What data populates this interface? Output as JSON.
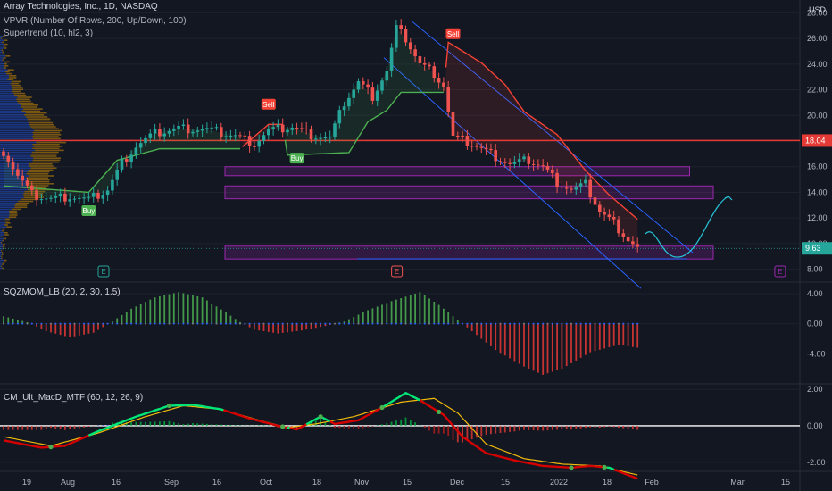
{
  "header": {
    "symbol_line": "Array Technologies, Inc., 1D, NASDAQ",
    "vpvr_line": "VPVR (Number Of Rows, 200, Up/Down, 100)",
    "supertrend_line": "Supertrend (10, hl2, 3)",
    "currency": "USD"
  },
  "colors": {
    "background": "#131722",
    "up": "#26a69a",
    "down": "#ef5350",
    "supertrend_up": "#4caf50",
    "supertrend_down": "#f44336",
    "hline": "#e53935",
    "box": "#9c27b0",
    "channel": "#2962ff",
    "projection": "#26c6da",
    "sqz_green": "#4caf50",
    "sqz_red": "#e53935",
    "macd_green": "#00e676",
    "macd_red": "#d50000",
    "signal": "#f0b90b"
  },
  "chart_data": [
    {
      "type": "candlestick",
      "title": "Array Technologies, Inc., 1D, NASDAQ",
      "ylabel": "USD",
      "ylim": [
        7.0,
        29.0
      ],
      "yticks": [
        8.0,
        10.0,
        12.0,
        14.0,
        16.0,
        18.0,
        20.0,
        22.0,
        24.0,
        26.0,
        28.0
      ],
      "ytick_labels": [
        "8.00",
        "10.00",
        "12.00",
        "14.00",
        "16.00",
        "18.00",
        "20.00",
        "22.00",
        "24.00",
        "26.00",
        "28.00"
      ],
      "xtick_labels": [
        "19",
        "Aug",
        "16",
        "Sep",
        "16",
        "Oct",
        "18",
        "Nov",
        "15",
        "Dec",
        "15",
        "2022",
        "18",
        "Feb",
        "Mar",
        "15"
      ],
      "horizontal_line": {
        "value": 18.04,
        "label": "18.04"
      },
      "last_price": {
        "value": 9.63,
        "label": "9.63"
      },
      "close_path": [
        {
          "t": 0,
          "c": 17.2
        },
        {
          "t": 3,
          "c": 15.3
        },
        {
          "t": 6,
          "c": 13.8
        },
        {
          "t": 10,
          "c": 13.5
        },
        {
          "t": 14,
          "c": 13.7
        },
        {
          "t": 18,
          "c": 13.4
        },
        {
          "t": 22,
          "c": 14.2
        },
        {
          "t": 25,
          "c": 16.3
        },
        {
          "t": 28,
          "c": 17.6
        },
        {
          "t": 32,
          "c": 18.6
        },
        {
          "t": 37,
          "c": 19.0
        },
        {
          "t": 43,
          "c": 18.9
        },
        {
          "t": 49,
          "c": 18.4
        },
        {
          "t": 53,
          "c": 17.8
        },
        {
          "t": 56,
          "c": 18.8
        },
        {
          "t": 61,
          "c": 19.1
        },
        {
          "t": 65,
          "c": 18.5
        },
        {
          "t": 69,
          "c": 18.2
        },
        {
          "t": 72,
          "c": 21.0
        },
        {
          "t": 75,
          "c": 22.6
        },
        {
          "t": 78,
          "c": 21.5
        },
        {
          "t": 81,
          "c": 23.5
        },
        {
          "t": 83,
          "c": 26.8
        },
        {
          "t": 85,
          "c": 26.0
        },
        {
          "t": 88,
          "c": 24.0
        },
        {
          "t": 91,
          "c": 23.3
        },
        {
          "t": 93,
          "c": 22.3
        },
        {
          "t": 95,
          "c": 18.3
        },
        {
          "t": 99,
          "c": 17.8
        },
        {
          "t": 103,
          "c": 17.0
        },
        {
          "t": 107,
          "c": 16.2
        },
        {
          "t": 111,
          "c": 16.5
        },
        {
          "t": 114,
          "c": 16.0
        },
        {
          "t": 117,
          "c": 14.8
        },
        {
          "t": 120,
          "c": 14.2
        },
        {
          "t": 123,
          "c": 14.6
        },
        {
          "t": 126,
          "c": 12.5
        },
        {
          "t": 129,
          "c": 11.6
        },
        {
          "t": 132,
          "c": 10.3
        },
        {
          "t": 134,
          "c": 9.63
        }
      ],
      "supertrend": [
        {
          "t": 0,
          "v": 14.5,
          "dir": "up"
        },
        {
          "t": 18,
          "v": 14.0,
          "dir": "up"
        },
        {
          "t": 24,
          "v": 16.5,
          "dir": "up"
        },
        {
          "t": 33,
          "v": 17.4,
          "dir": "up"
        },
        {
          "t": 50,
          "v": 17.4,
          "dir": "up"
        },
        {
          "t": 56,
          "v": 19.3,
          "dir": "down"
        },
        {
          "t": 59,
          "v": 19.3,
          "dir": "down"
        },
        {
          "t": 60,
          "v": 16.9,
          "dir": "up"
        },
        {
          "t": 73,
          "v": 17.1,
          "dir": "up"
        },
        {
          "t": 77,
          "v": 19.5,
          "dir": "up"
        },
        {
          "t": 81,
          "v": 20.4,
          "dir": "up"
        },
        {
          "t": 84,
          "v": 21.8,
          "dir": "up"
        },
        {
          "t": 93,
          "v": 21.8,
          "dir": "up"
        },
        {
          "t": 94,
          "v": 25.7,
          "dir": "down"
        },
        {
          "t": 101,
          "v": 24.1,
          "dir": "down"
        },
        {
          "t": 106,
          "v": 22.4,
          "dir": "down"
        },
        {
          "t": 110,
          "v": 20.3,
          "dir": "down"
        },
        {
          "t": 117,
          "v": 18.5,
          "dir": "down"
        },
        {
          "t": 123,
          "v": 15.7,
          "dir": "down"
        },
        {
          "t": 128,
          "v": 13.8,
          "dir": "down"
        },
        {
          "t": 134,
          "v": 11.9,
          "dir": "down"
        }
      ],
      "signals": [
        {
          "label": "Buy",
          "t": 18,
          "v": 12.5,
          "kind": "buy"
        },
        {
          "label": "Sell",
          "t": 56,
          "v": 20.8,
          "kind": "sell"
        },
        {
          "label": "Buy",
          "t": 62,
          "v": 16.6,
          "kind": "buy"
        },
        {
          "label": "Sell",
          "t": 95,
          "v": 26.3,
          "kind": "sell"
        }
      ],
      "boxes": [
        {
          "t0": 46,
          "t1": 145,
          "lo": 15.3,
          "hi": 16.0
        },
        {
          "t0": 46,
          "t1": 150,
          "lo": 13.5,
          "hi": 14.5
        },
        {
          "t0": 46,
          "t1": 150,
          "lo": 8.8,
          "hi": 9.8
        }
      ],
      "earnings_markers": [
        {
          "t": 20,
          "label": "E"
        },
        {
          "t": 82,
          "label": "E"
        },
        {
          "t": 163,
          "label": "E"
        }
      ]
    },
    {
      "type": "bar",
      "title": "SQZMOM_LB (20, 2, 30, 1.5)",
      "ylim": [
        -8.0,
        5.3
      ],
      "yticks": [
        4.0,
        0.0,
        -4.0
      ],
      "ytick_labels": [
        "4.00",
        "0.00",
        "-4.00"
      ],
      "path": [
        {
          "t": 0,
          "v": 1.0
        },
        {
          "t": 5,
          "v": 0.2
        },
        {
          "t": 9,
          "v": -1.0
        },
        {
          "t": 14,
          "v": -1.8
        },
        {
          "t": 19,
          "v": -1.2
        },
        {
          "t": 23,
          "v": 0.3
        },
        {
          "t": 27,
          "v": 2.0
        },
        {
          "t": 32,
          "v": 3.5
        },
        {
          "t": 37,
          "v": 4.2
        },
        {
          "t": 42,
          "v": 3.5
        },
        {
          "t": 47,
          "v": 1.5
        },
        {
          "t": 50,
          "v": 0.2
        },
        {
          "t": 53,
          "v": -0.8
        },
        {
          "t": 58,
          "v": -1.3
        },
        {
          "t": 63,
          "v": -0.9
        },
        {
          "t": 68,
          "v": -0.3
        },
        {
          "t": 72,
          "v": 0.3
        },
        {
          "t": 77,
          "v": 1.8
        },
        {
          "t": 82,
          "v": 3.0
        },
        {
          "t": 88,
          "v": 4.2
        },
        {
          "t": 92,
          "v": 2.5
        },
        {
          "t": 96,
          "v": 0.5
        },
        {
          "t": 99,
          "v": -1.0
        },
        {
          "t": 104,
          "v": -3.5
        },
        {
          "t": 110,
          "v": -5.7
        },
        {
          "t": 114,
          "v": -6.8
        },
        {
          "t": 118,
          "v": -6.0
        },
        {
          "t": 124,
          "v": -3.8
        },
        {
          "t": 130,
          "v": -2.8
        },
        {
          "t": 134,
          "v": -3.2
        }
      ]
    },
    {
      "type": "bar",
      "title": "CM_Ult_MacD_MTF (60, 12, 26, 9)",
      "ylim": [
        -2.5,
        2.2
      ],
      "yticks": [
        2.0,
        0.0,
        -2.0
      ],
      "ytick_labels": [
        "2.00",
        "0.00",
        "-2.00"
      ],
      "macd": [
        {
          "t": 0,
          "v": -0.8
        },
        {
          "t": 8,
          "v": -1.2
        },
        {
          "t": 13,
          "v": -1.1
        },
        {
          "t": 20,
          "v": -0.3
        },
        {
          "t": 28,
          "v": 0.5
        },
        {
          "t": 35,
          "v": 1.1
        },
        {
          "t": 40,
          "v": 1.15
        },
        {
          "t": 46,
          "v": 0.9
        },
        {
          "t": 52,
          "v": 0.4
        },
        {
          "t": 58,
          "v": 0.0
        },
        {
          "t": 62,
          "v": -0.2
        },
        {
          "t": 67,
          "v": 0.5
        },
        {
          "t": 70,
          "v": 0.1
        },
        {
          "t": 75,
          "v": 0.3
        },
        {
          "t": 80,
          "v": 1.0
        },
        {
          "t": 85,
          "v": 1.8
        },
        {
          "t": 88,
          "v": 1.4
        },
        {
          "t": 93,
          "v": 0.6
        },
        {
          "t": 97,
          "v": -0.6
        },
        {
          "t": 102,
          "v": -1.5
        },
        {
          "t": 108,
          "v": -1.9
        },
        {
          "t": 114,
          "v": -2.2
        },
        {
          "t": 120,
          "v": -2.3
        },
        {
          "t": 124,
          "v": -2.2
        },
        {
          "t": 128,
          "v": -2.3
        },
        {
          "t": 131,
          "v": -2.6
        },
        {
          "t": 134,
          "v": -2.9
        }
      ],
      "signal": [
        {
          "t": 0,
          "v": -0.6
        },
        {
          "t": 10,
          "v": -1.1
        },
        {
          "t": 20,
          "v": -0.4
        },
        {
          "t": 30,
          "v": 0.5
        },
        {
          "t": 38,
          "v": 1.1
        },
        {
          "t": 46,
          "v": 0.9
        },
        {
          "t": 54,
          "v": 0.3
        },
        {
          "t": 60,
          "v": -0.1
        },
        {
          "t": 66,
          "v": 0.1
        },
        {
          "t": 74,
          "v": 0.5
        },
        {
          "t": 84,
          "v": 1.3
        },
        {
          "t": 91,
          "v": 1.5
        },
        {
          "t": 96,
          "v": 0.7
        },
        {
          "t": 102,
          "v": -1.0
        },
        {
          "t": 110,
          "v": -1.8
        },
        {
          "t": 118,
          "v": -2.1
        },
        {
          "t": 126,
          "v": -2.2
        },
        {
          "t": 134,
          "v": -2.7
        }
      ],
      "cross_dots": [
        10,
        35,
        59,
        67,
        80,
        92,
        120,
        127
      ]
    }
  ]
}
